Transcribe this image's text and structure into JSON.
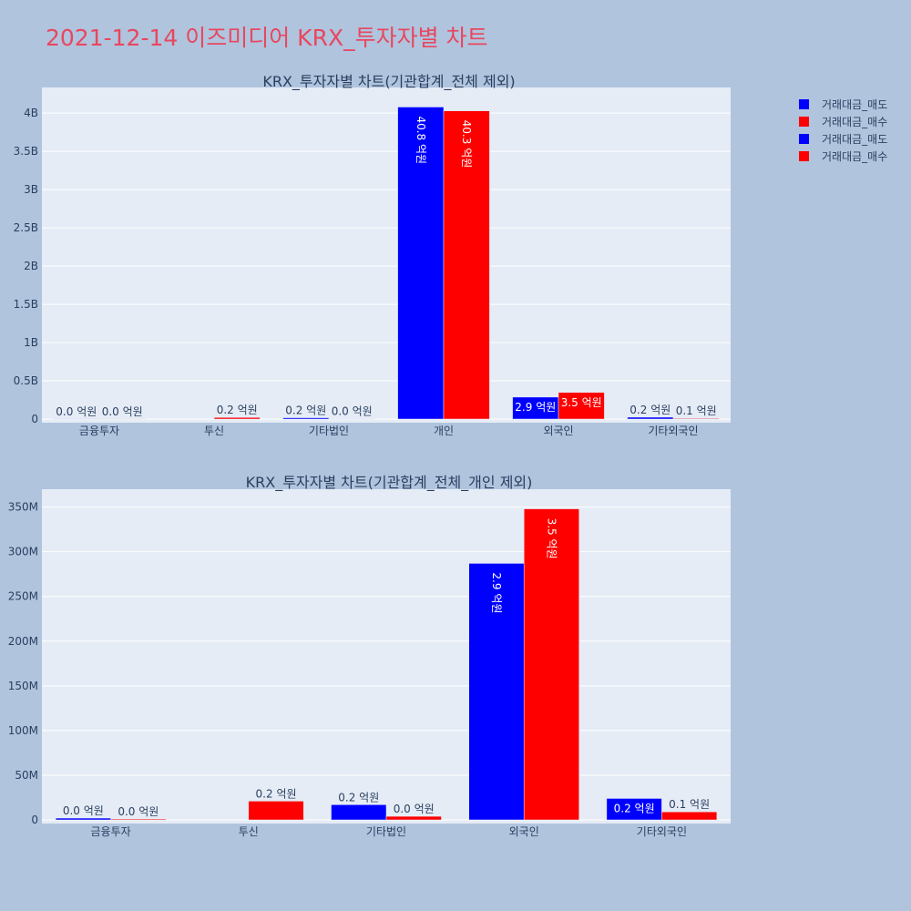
{
  "page": {
    "title": "2021-12-14 이즈미디어 KRX_투자자별 차트"
  },
  "colors": {
    "sell": "#0000ff",
    "buy": "#ff0000",
    "plot_bg": "#e5ecf6",
    "page_bg": "#b0c4de",
    "title": "#e8475f"
  },
  "legend": {
    "position": "top-right",
    "items": [
      {
        "label": "거래대금_매도",
        "color": "#0000ff"
      },
      {
        "label": "거래대금_매수",
        "color": "#ff0000"
      },
      {
        "label": "거래대금_매도",
        "color": "#0000ff"
      },
      {
        "label": "거래대금_매수",
        "color": "#ff0000"
      }
    ]
  },
  "chart_data": [
    {
      "type": "bar",
      "title": "KRX_투자자별 차트(기관합계_전체 제외)",
      "categories": [
        "금융투자",
        "투신",
        "기타법인",
        "개인",
        "외국인",
        "기타외국인"
      ],
      "series": [
        {
          "name": "거래대금_매도",
          "color": "#0000ff",
          "values": [
            2000000,
            0,
            17000000,
            4080000000,
            287000000,
            24000000
          ],
          "labels": [
            "0.0 억원",
            "",
            "0.2 억원",
            "40.8 억원",
            "2.9 억원",
            "0.2 억원"
          ]
        },
        {
          "name": "거래대금_매수",
          "color": "#ff0000",
          "values": [
            1000000,
            21000000,
            4000000,
            4030000000,
            348000000,
            9000000
          ],
          "labels": [
            "0.0 억원",
            "0.2 억원",
            "0.0 억원",
            "40.3 억원",
            "3.5 억원",
            "0.1 억원"
          ]
        }
      ],
      "ylim": [
        0,
        4300000000
      ],
      "yticks": [
        0,
        500000000,
        1000000000,
        1500000000,
        2000000000,
        2500000000,
        3000000000,
        3500000000,
        4000000000
      ],
      "ytick_labels": [
        "0",
        "0.5B",
        "1B",
        "1.5B",
        "2B",
        "2.5B",
        "3B",
        "3.5B",
        "4B"
      ],
      "grid": true
    },
    {
      "type": "bar",
      "title": "KRX_투자자별 차트(기관합계_전체_개인 제외)",
      "categories": [
        "금융투자",
        "투신",
        "기타법인",
        "외국인",
        "기타외국인"
      ],
      "series": [
        {
          "name": "거래대금_매도",
          "color": "#0000ff",
          "values": [
            2000000,
            0,
            17000000,
            287000000,
            24000000
          ],
          "labels": [
            "0.0 억원",
            "",
            "0.2 억원",
            "2.9 억원",
            "0.2 억원"
          ]
        },
        {
          "name": "거래대금_매수",
          "color": "#ff0000",
          "values": [
            1000000,
            21000000,
            4000000,
            348000000,
            9000000
          ],
          "labels": [
            "0.0 억원",
            "0.2 억원",
            "0.0 억원",
            "3.5 억원",
            "0.1 억원"
          ]
        }
      ],
      "ylim": [
        0,
        370000000
      ],
      "yticks": [
        0,
        50000000,
        100000000,
        150000000,
        200000000,
        250000000,
        300000000,
        350000000
      ],
      "ytick_labels": [
        "0",
        "50M",
        "100M",
        "150M",
        "200M",
        "250M",
        "300M",
        "350M"
      ],
      "grid": true
    }
  ]
}
